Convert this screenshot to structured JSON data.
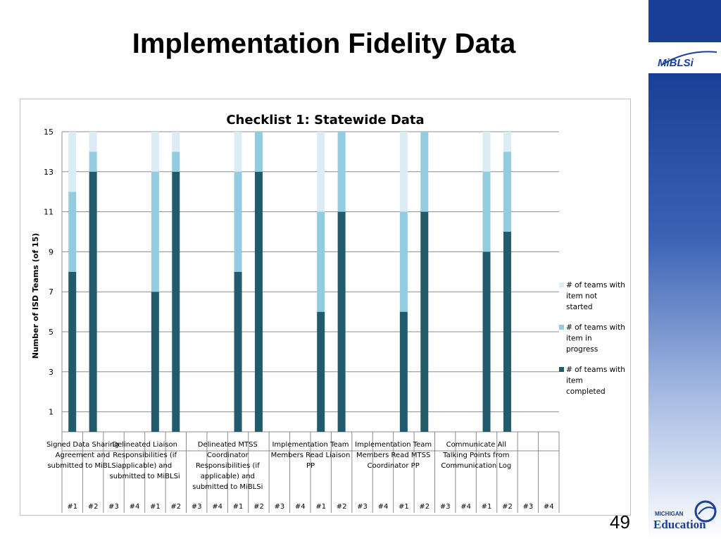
{
  "slide": {
    "title": "Implementation Fidelity Data",
    "page_number": "49"
  },
  "logos": {
    "mibls_text": "MiBLSi",
    "mde_small": "MICHIGAN",
    "mde_big": "Education"
  },
  "colors": {
    "not_started": "#dcecf5",
    "in_progress": "#93cce0",
    "completed": "#225b6c",
    "sidebar_blue": "#1a3f96"
  },
  "chart_data": {
    "type": "bar",
    "stacked": true,
    "title": "Checklist 1: Statewide Data",
    "ylabel": "Number of ISD Teams (of 15)",
    "ylim": [
      0,
      15
    ],
    "yticks": [
      1,
      3,
      5,
      7,
      9,
      11,
      13,
      15
    ],
    "grid": true,
    "legend_position": "right",
    "groups": [
      {
        "label": "Signed Data Sharing Agreement and submitted to MiBLSi",
        "label_lines": [
          "Signed Data Sharing",
          "Agreement and",
          "submitted to MiBLSi"
        ],
        "subcategories": [
          "#1",
          "#2",
          "#3"
        ]
      },
      {
        "label": "Delineated Liaison Responsibilities (if applicable) and submitted to MiBLSi",
        "label_lines": [
          "Delineated Liaison",
          "Responsibilities (if",
          "applicable) and",
          "submitted to MiBLSi"
        ],
        "subcategories": [
          "#4",
          "#1",
          "#2",
          "#3"
        ]
      },
      {
        "label": "Delineated MTSS Coordinator Responsibilities (if applicable) and submitted to MiBLSi",
        "label_lines": [
          "Delineated MTSS",
          "Coordinator",
          "Responsibilities (if",
          "applicable) and",
          "submitted to MiBLSi"
        ],
        "subcategories": [
          "#4",
          "#1",
          "#2",
          "#3"
        ]
      },
      {
        "label": "Implementation Team Members Read Liaison PP",
        "label_lines": [
          "Implementation Team",
          "Members Read Liaison",
          "PP"
        ],
        "subcategories": [
          "#4",
          "#1",
          "#2",
          "#3"
        ]
      },
      {
        "label": "Implementation Team Members Read MTSS Coordinator PP",
        "label_lines": [
          "Implementation Team",
          "Members Read MTSS",
          "Coordinator PP"
        ],
        "subcategories": [
          "#4",
          "#1",
          "#2",
          "#3"
        ]
      },
      {
        "label": "Communicate All Talking Points from Communication Log",
        "label_lines": [
          "Communicate All",
          "Talking Points from",
          "Communication Log"
        ],
        "subcategories": [
          "#4",
          "#1",
          "#2",
          "#3",
          "#4"
        ]
      }
    ],
    "categories": [
      "#1",
      "#2",
      "#3",
      "#4",
      "#1",
      "#2",
      "#3",
      "#4",
      "#1",
      "#2",
      "#3",
      "#4",
      "#1",
      "#2",
      "#3",
      "#4",
      "#1",
      "#2",
      "#3",
      "#4",
      "#1",
      "#2",
      "#3",
      "#4"
    ],
    "series": [
      {
        "name": "# of teams with item completed",
        "legend_lines": [
          "# of teams with",
          "item",
          "completed"
        ],
        "values": [
          8,
          13,
          0,
          0,
          7,
          13,
          0,
          0,
          8,
          13,
          0,
          0,
          6,
          11,
          0,
          0,
          6,
          11,
          0,
          0,
          9,
          10,
          0,
          0
        ]
      },
      {
        "name": "# of teams with item in progress",
        "legend_lines": [
          "# of teams with",
          "item in",
          "progress"
        ],
        "values": [
          4,
          1,
          0,
          0,
          6,
          1,
          0,
          0,
          5,
          2,
          0,
          0,
          5,
          4,
          0,
          0,
          5,
          4,
          0,
          0,
          4,
          4,
          0,
          0
        ]
      },
      {
        "name": "# of teams with item not started",
        "legend_lines": [
          "# of teams with",
          "item not",
          "started"
        ],
        "values": [
          3,
          1,
          0,
          0,
          2,
          1,
          0,
          0,
          2,
          0,
          0,
          0,
          4,
          0,
          0,
          0,
          4,
          0,
          0,
          0,
          2,
          1,
          0,
          0
        ]
      }
    ]
  }
}
